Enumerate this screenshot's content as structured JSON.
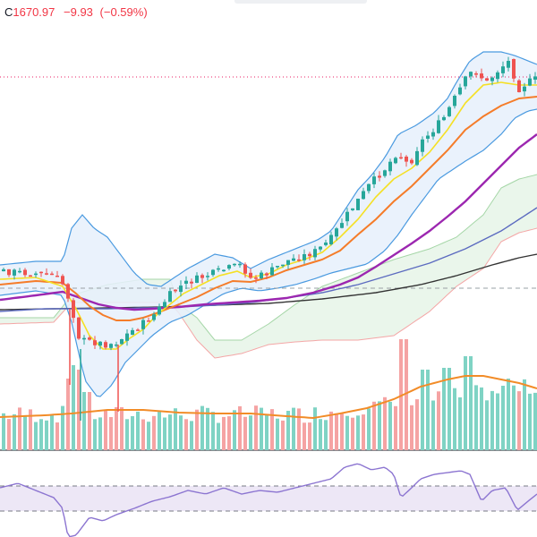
{
  "legend": {
    "label": "C",
    "close": "1670.97",
    "change": "−9.93",
    "change_pct": "(−0.59%)"
  },
  "colors": {
    "up": "#26a69a",
    "down": "#ef5350",
    "up_volume": "#7fd3c4",
    "down_volume": "#f5a3a3",
    "bollinger_line": "#4a9ae0",
    "bollinger_fill": "#e6f0fb",
    "sma_fast": "#f5e025",
    "sma_mid": "#f57c29",
    "sma_slow": "#9c27b0",
    "sma_long": "#5c6bc0",
    "sma_200": "#333333",
    "cloud_green": "#e8f5e9",
    "cloud_red": "#fde4e4",
    "volume_ma": "#f28c28",
    "rsi_line": "#8c75d1",
    "rsi_band": "#ede7f6",
    "last_price_line": "#e91e63"
  },
  "chart_data": {
    "type": "candlestick",
    "panes": [
      "price",
      "volume",
      "rsi"
    ],
    "candles": [],
    "volume_ma": true,
    "rsi_levels": [
      70,
      30
    ]
  }
}
